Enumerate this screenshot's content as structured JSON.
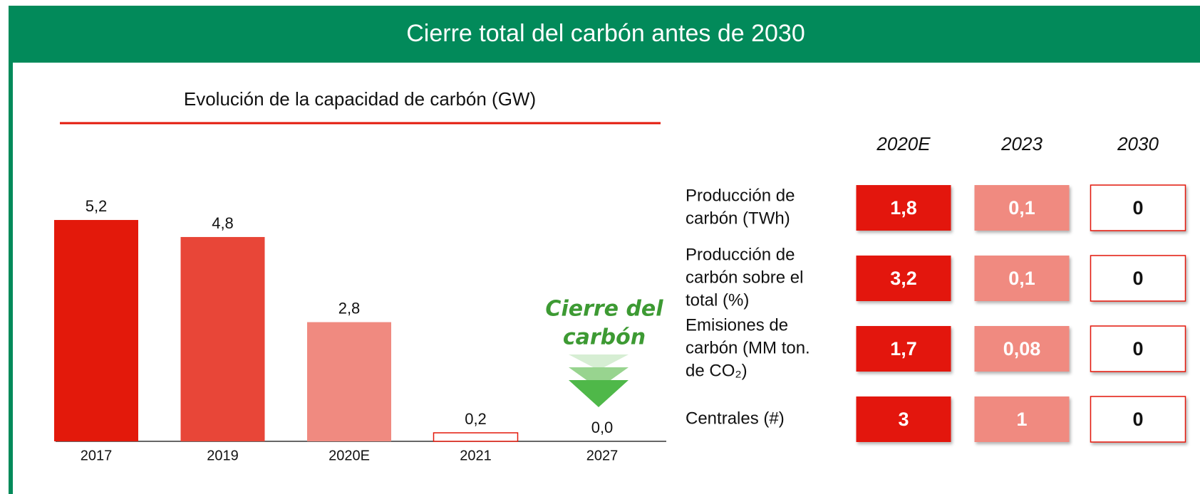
{
  "header": {
    "title": "Cierre total del carbón antes de 2030"
  },
  "chart_data": {
    "type": "bar",
    "title": "Evolución de la capacidad de carbón (GW)",
    "categories": [
      "2017",
      "2019",
      "2020E",
      "2021",
      "2027"
    ],
    "values": [
      5.2,
      4.8,
      2.8,
      0.2,
      0.0
    ],
    "value_labels": [
      "5,2",
      "4,8",
      "2,8",
      "0,2",
      "0,0"
    ],
    "colors": [
      "#e3190b",
      "#e84638",
      "#f08a80",
      "#ffffff",
      "#ffffff"
    ],
    "annotation": [
      "Cierre del",
      "carbón"
    ]
  },
  "table": {
    "columns": [
      "2020E",
      "2023",
      "2030"
    ],
    "rows": [
      {
        "label": [
          "Producción de",
          "carbón (TWh)"
        ],
        "values": [
          "1,8",
          "0,1",
          "0"
        ]
      },
      {
        "label": [
          "Producción de",
          "carbón sobre el",
          "total (%)"
        ],
        "values": [
          "3,2",
          "0,1",
          "0"
        ]
      },
      {
        "label": [
          "Emisiones de",
          "carbón (MM ton.",
          "de CO₂)"
        ],
        "values": [
          "1,7",
          "0,08",
          "0"
        ]
      },
      {
        "label": [
          "Centrales (#)"
        ],
        "values": [
          "3",
          "1",
          "0"
        ]
      }
    ]
  }
}
